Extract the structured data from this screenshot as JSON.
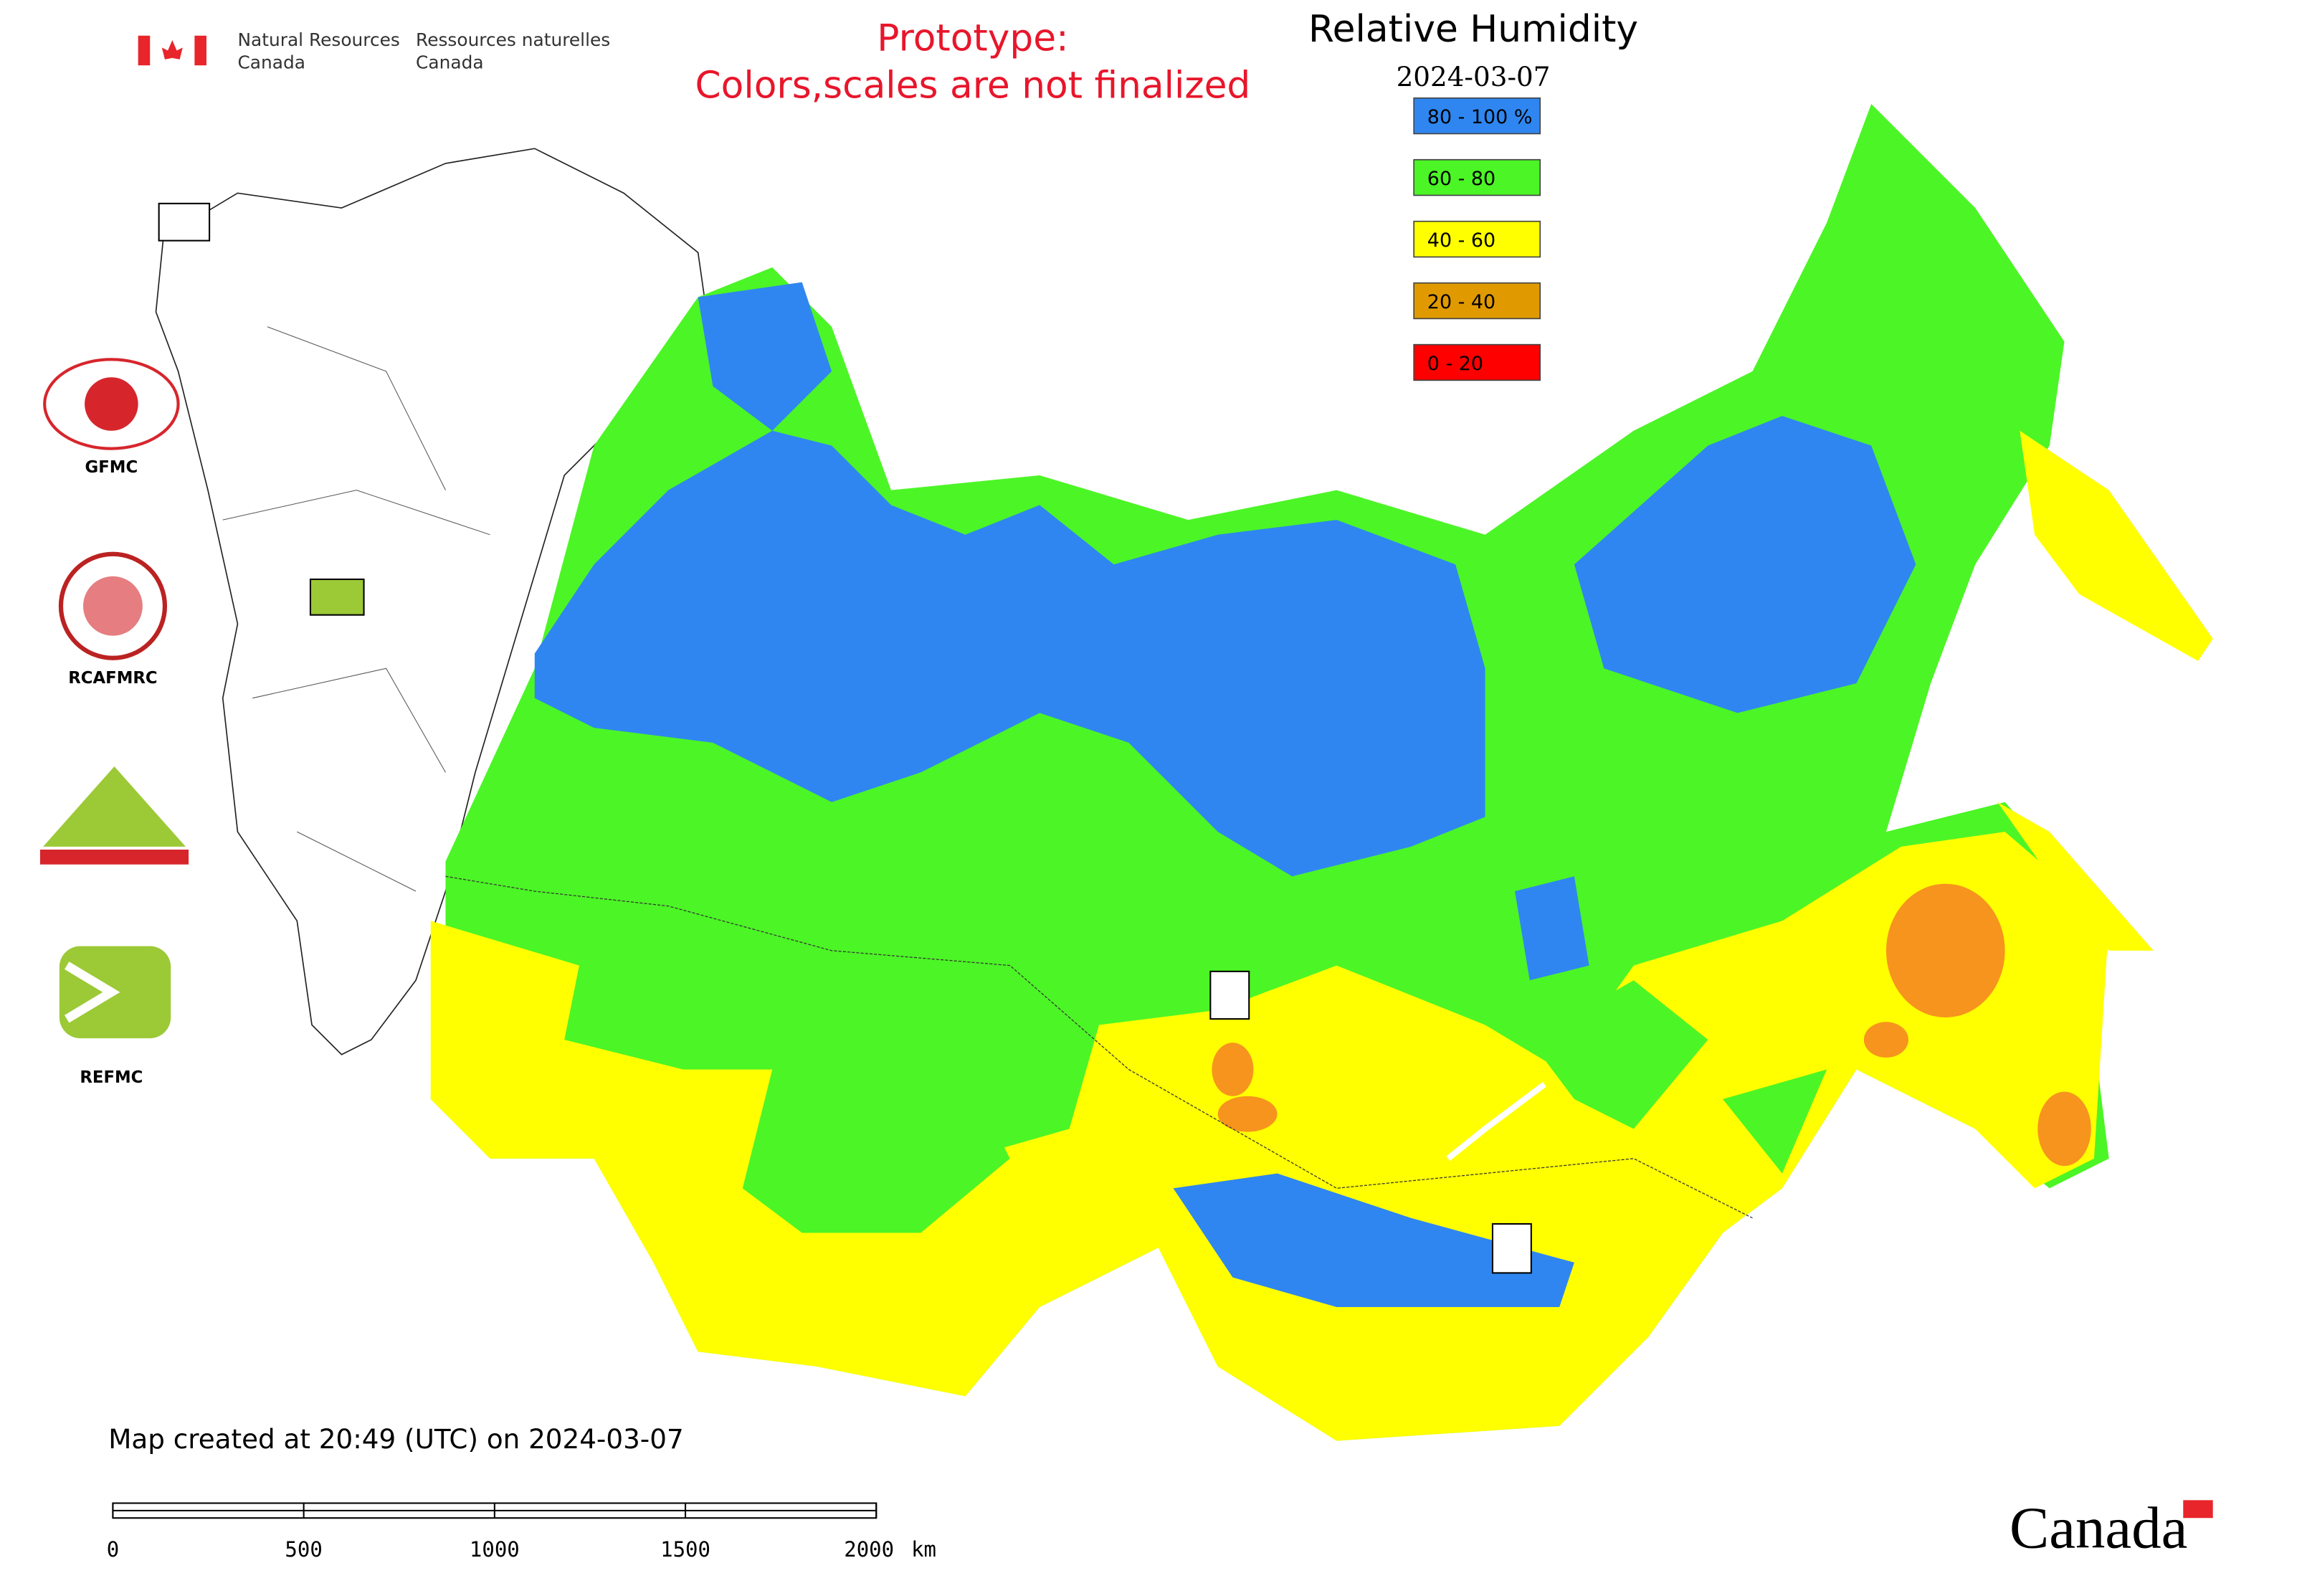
{
  "header": {
    "agency_en": [
      "Natural Resources",
      "Canada"
    ],
    "agency_fr": [
      "Ressources naturelles",
      "Canada"
    ],
    "notice": [
      "Prototype:",
      "Colors,scales are not finalized"
    ],
    "title": "Relative Humidity",
    "date": "2024-03-07"
  },
  "legend": [
    {
      "label": "80 - 100 %",
      "color": "#2f86f0"
    },
    {
      "label": "60 - 80",
      "color": "#4cf526"
    },
    {
      "label": "40 - 60",
      "color": "#ffff00"
    },
    {
      "label": "20 - 40",
      "color": "#e09a00"
    },
    {
      "label": "0 - 20",
      "color": "#ff0000"
    }
  ],
  "logos": [
    "GFMC",
    "RCAFMRC",
    "REFMC"
  ],
  "footer": {
    "created": "Map created at 20:49 (UTC) on 2024-03-07",
    "wordmark": "Canada"
  },
  "scale_bar": {
    "ticks": [
      0,
      500,
      1000,
      1500,
      2000
    ],
    "unit": "km"
  }
}
